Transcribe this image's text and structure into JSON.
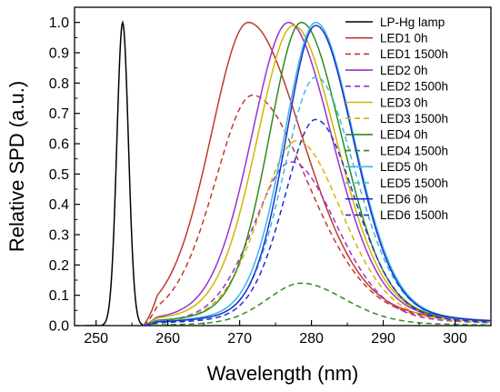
{
  "chart_data": {
    "type": "line",
    "xlabel": "Wavelength (nm)",
    "ylabel": "Relative SPD (a.u.)",
    "xlim": [
      247,
      305
    ],
    "ylim": [
      0,
      1.05
    ],
    "x_ticks": [
      "250",
      "260",
      "270",
      "280",
      "290",
      "300"
    ],
    "y_ticks": [
      "0.0",
      "0.1",
      "0.2",
      "0.3",
      "0.4",
      "0.5",
      "0.6",
      "0.7",
      "0.8",
      "0.9",
      "1.0"
    ],
    "grid": false,
    "legend_position": "top-right",
    "series": [
      {
        "name": "LP-Hg lamp",
        "color": "#000000",
        "dashed": false,
        "shape": "hg"
      },
      {
        "name": "LED1 0h",
        "color": "#c0392b",
        "dashed": false,
        "peak": 271.2,
        "height": 1.0,
        "wl": 6.4,
        "wr": 9.2
      },
      {
        "name": "LED1 1500h",
        "color": "#c0392b",
        "dashed": true,
        "peak": 271.8,
        "height": 0.76,
        "wl": 6.4,
        "wr": 9.4
      },
      {
        "name": "LED2 0h",
        "color": "#9932cc",
        "dashed": false,
        "peak": 276.8,
        "height": 1.0,
        "wl": 6.3,
        "wr": 7.4
      },
      {
        "name": "LED2 1500h",
        "color": "#9932cc",
        "dashed": true,
        "peak": 277.2,
        "height": 0.54,
        "wl": 6.3,
        "wr": 7.6
      },
      {
        "name": "LED3 0h",
        "color": "#d4b400",
        "dashed": false,
        "peak": 277.5,
        "height": 0.99,
        "wl": 6.2,
        "wr": 7.3
      },
      {
        "name": "LED3 1500h",
        "color": "#d4b400",
        "dashed": true,
        "peak": 278.0,
        "height": 0.61,
        "wl": 6.2,
        "wr": 7.5
      },
      {
        "name": "LED4 0h",
        "color": "#2e8b1e",
        "dashed": false,
        "peak": 278.6,
        "height": 1.0,
        "wl": 5.5,
        "wr": 6.9
      },
      {
        "name": "LED4 1500h",
        "color": "#2e8b1e",
        "dashed": true,
        "peak": 278.6,
        "height": 0.14,
        "wl": 5.8,
        "wr": 7.4
      },
      {
        "name": "LED5 0h",
        "color": "#38b6e8",
        "dashed": false,
        "peak": 280.6,
        "height": 1.0,
        "wl": 5.4,
        "wr": 6.5
      },
      {
        "name": "LED5 1500h",
        "color": "#38b6e8",
        "dashed": true,
        "peak": 280.6,
        "height": 0.82,
        "wl": 5.4,
        "wr": 6.7
      },
      {
        "name": "LED6 0h",
        "color": "#1f2fcc",
        "dashed": false,
        "peak": 280.6,
        "height": 0.99,
        "wl": 5.1,
        "wr": 6.4
      },
      {
        "name": "LED6 1500h",
        "color": "#1f2fcc",
        "dashed": true,
        "peak": 280.6,
        "height": 0.68,
        "wl": 5.3,
        "wr": 6.6
      }
    ]
  }
}
